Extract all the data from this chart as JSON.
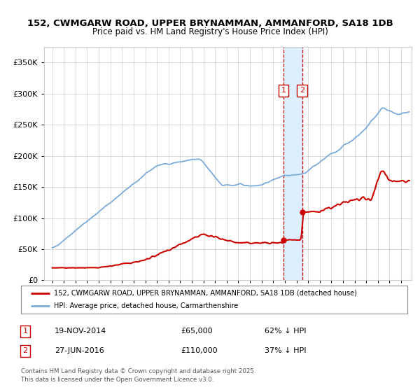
{
  "title1": "152, CWMGARW ROAD, UPPER BRYNAMMAN, AMMANFORD, SA18 1DB",
  "title2": "Price paid vs. HM Land Registry's House Price Index (HPI)",
  "legend_line1": "152, CWMGARW ROAD, UPPER BRYNAMMAN, AMMANFORD, SA18 1DB (detached house)",
  "legend_line2": "HPI: Average price, detached house, Carmarthenshire",
  "transaction1_date": "19-NOV-2014",
  "transaction1_price": 65000,
  "transaction1_label": "62% ↓ HPI",
  "transaction2_date": "27-JUN-2016",
  "transaction2_price": 110000,
  "transaction2_label": "37% ↓ HPI",
  "footer": "Contains HM Land Registry data © Crown copyright and database right 2025.\nThis data is licensed under the Open Government Licence v3.0.",
  "hpi_color": "#7aabdb",
  "price_color": "#cc0000",
  "background_color": "#ffffff",
  "grid_color": "#cccccc",
  "shade_color": "#ddeeff",
  "transaction1_x": 2014.88,
  "transaction2_x": 2016.49,
  "ylim_max": 375000,
  "xlim_min": 1994.3,
  "xlim_max": 2025.9
}
